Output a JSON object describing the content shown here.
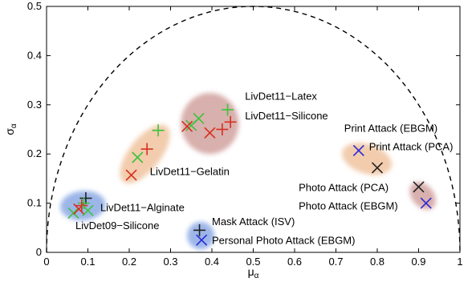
{
  "chart_data": {
    "type": "scatter",
    "title": "",
    "xlabel": "μ",
    "xlabel_sub": "α",
    "ylabel": "σ",
    "ylabel_sub": "α",
    "xlim": [
      0,
      1
    ],
    "ylim": [
      0,
      0.5
    ],
    "xticks": [
      "0",
      "0.1",
      "0.2",
      "0.3",
      "0.4",
      "0.5",
      "0.6",
      "0.7",
      "0.8",
      "0.9",
      "1"
    ],
    "yticks": [
      "0",
      "0.1",
      "0.2",
      "0.3",
      "0.4",
      "0.5"
    ],
    "grid": false,
    "boundary_curve": "semicircle centered at (0.5, 0), radius 0.5, dashed",
    "colors": {
      "red": "#d62f20",
      "green": "#3cc33c",
      "black": "#222222",
      "blue": "#2c28d6",
      "blob_red": "#b86e6a",
      "blob_orange": "#e8a269",
      "blob_blue": "#4a7ad6"
    },
    "blobs": [
      {
        "name": "LivDet11-Latex / LivDet11-Silicone",
        "cx": 0.395,
        "cy": 0.262,
        "rx": 0.07,
        "ry": 0.062,
        "angle": 0,
        "color": "blob_red"
      },
      {
        "name": "LivDet11-Gelatin",
        "cx": 0.238,
        "cy": 0.2,
        "rx": 0.085,
        "ry": 0.032,
        "angle": 52,
        "color": "blob_orange"
      },
      {
        "name": "LivDet11-Alginate / LivDet09-Silicone",
        "cx": 0.088,
        "cy": 0.095,
        "rx": 0.055,
        "ry": 0.03,
        "angle": 5,
        "color": "blob_blue"
      },
      {
        "name": "Mask Attack / Personal Photo Attack",
        "cx": 0.373,
        "cy": 0.034,
        "rx": 0.033,
        "ry": 0.028,
        "angle": 0,
        "color": "blob_blue"
      },
      {
        "name": "Print Attack / Photo Attack",
        "cx": 0.775,
        "cy": 0.19,
        "rx": 0.062,
        "ry": 0.03,
        "angle": -18,
        "color": "blob_orange"
      },
      {
        "name": "Photo Attack (PCA) / (EBGM)",
        "cx": 0.91,
        "cy": 0.115,
        "rx": 0.038,
        "ry": 0.022,
        "angle": -50,
        "color": "blob_red"
      }
    ],
    "points": [
      {
        "x": 0.438,
        "y": 0.29,
        "marker": "+",
        "color": "green"
      },
      {
        "x": 0.445,
        "y": 0.265,
        "marker": "+",
        "color": "red"
      },
      {
        "x": 0.425,
        "y": 0.25,
        "marker": "+",
        "color": "red"
      },
      {
        "x": 0.368,
        "y": 0.272,
        "marker": "x",
        "color": "green"
      },
      {
        "x": 0.35,
        "y": 0.258,
        "marker": "x",
        "color": "green"
      },
      {
        "x": 0.34,
        "y": 0.256,
        "marker": "x",
        "color": "red"
      },
      {
        "x": 0.395,
        "y": 0.243,
        "marker": "x",
        "color": "red"
      },
      {
        "x": 0.27,
        "y": 0.248,
        "marker": "+",
        "color": "green"
      },
      {
        "x": 0.22,
        "y": 0.193,
        "marker": "x",
        "color": "green"
      },
      {
        "x": 0.243,
        "y": 0.21,
        "marker": "+",
        "color": "red"
      },
      {
        "x": 0.205,
        "y": 0.157,
        "marker": "x",
        "color": "red"
      },
      {
        "x": 0.095,
        "y": 0.11,
        "marker": "+",
        "color": "black"
      },
      {
        "x": 0.09,
        "y": 0.1,
        "marker": "+",
        "color": "green"
      },
      {
        "x": 0.085,
        "y": 0.095,
        "marker": "+",
        "color": "red"
      },
      {
        "x": 0.065,
        "y": 0.08,
        "marker": "x",
        "color": "green"
      },
      {
        "x": 0.078,
        "y": 0.088,
        "marker": "x",
        "color": "red"
      },
      {
        "x": 0.1,
        "y": 0.085,
        "marker": "x",
        "color": "green"
      },
      {
        "x": 0.37,
        "y": 0.045,
        "marker": "+",
        "color": "black"
      },
      {
        "x": 0.375,
        "y": 0.025,
        "marker": "x",
        "color": "blue"
      },
      {
        "x": 0.755,
        "y": 0.207,
        "marker": "x",
        "color": "blue"
      },
      {
        "x": 0.8,
        "y": 0.172,
        "marker": "x",
        "color": "black"
      },
      {
        "x": 0.9,
        "y": 0.133,
        "marker": "x",
        "color": "black"
      },
      {
        "x": 0.918,
        "y": 0.1,
        "marker": "x",
        "color": "blue"
      }
    ],
    "annotations": [
      {
        "text": "LivDet11−Latex",
        "x": 0.48,
        "y": 0.31
      },
      {
        "text": "LivDet11−Silicone",
        "x": 0.48,
        "y": 0.27
      },
      {
        "text": "LivDet11−Gelatin",
        "x": 0.25,
        "y": 0.157
      },
      {
        "text": "LivDet11−Alginate",
        "x": 0.13,
        "y": 0.084
      },
      {
        "text": "LivDet09−Silicone",
        "x": 0.07,
        "y": 0.047
      },
      {
        "text": "Mask Attack (ISV)",
        "x": 0.4,
        "y": 0.055
      },
      {
        "text": "Personal Photo Attack (EBGM)",
        "x": 0.4,
        "y": 0.017
      },
      {
        "text": "Print Attack (EBGM)",
        "x": 0.72,
        "y": 0.245
      },
      {
        "text": "Print Attack (PCA)",
        "x": 0.78,
        "y": 0.208
      },
      {
        "text": "Photo Attack (PCA)",
        "x": 0.61,
        "y": 0.125
      },
      {
        "text": "Photo Attack (EBGM)",
        "x": 0.61,
        "y": 0.087
      }
    ]
  }
}
